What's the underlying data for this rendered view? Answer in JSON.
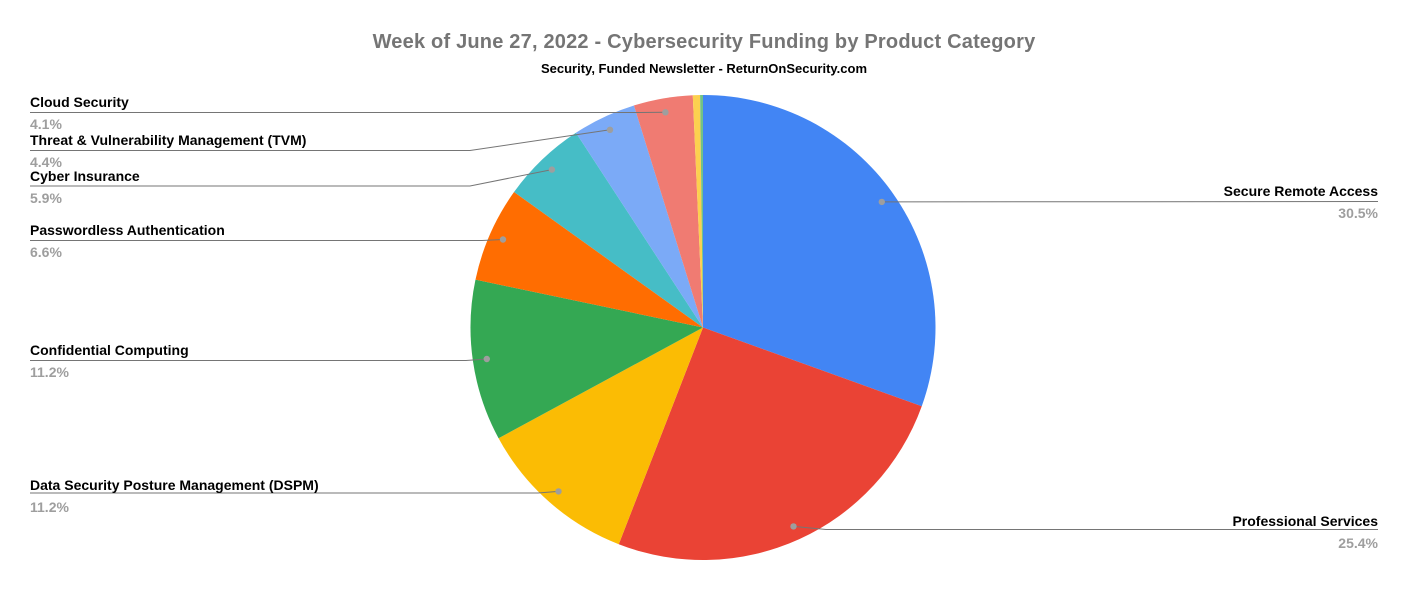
{
  "chart_data": {
    "type": "pie",
    "title": "Week of June 27, 2022 - Cybersecurity Funding by Product Category",
    "subtitle": "Security, Funded Newsletter - ReturnOnSecurity.com",
    "direction": "clockwise",
    "start_angle_deg": 0,
    "legend": "none",
    "slices": [
      {
        "label": "Secure Remote Access",
        "value_pct": 30.5,
        "pct_label": "30.5%",
        "color": "#4285F4",
        "label_side": "right"
      },
      {
        "label": "Professional Services",
        "value_pct": 25.4,
        "pct_label": "25.4%",
        "color": "#EA4335",
        "label_side": "right"
      },
      {
        "label": "Data Security Posture Management (DSPM)",
        "value_pct": 11.2,
        "pct_label": "11.2%",
        "color": "#FBBC04",
        "label_side": "left"
      },
      {
        "label": "Confidential Computing",
        "value_pct": 11.2,
        "pct_label": "11.2%",
        "color": "#34A853",
        "label_side": "left"
      },
      {
        "label": "Passwordless Authentication",
        "value_pct": 6.6,
        "pct_label": "6.6%",
        "color": "#FF6D01",
        "label_side": "left"
      },
      {
        "label": "Cyber Insurance",
        "value_pct": 5.9,
        "pct_label": "5.9%",
        "color": "#46BDC6",
        "label_side": "left"
      },
      {
        "label": "Threat & Vulnerability Management (TVM)",
        "value_pct": 4.4,
        "pct_label": "4.4%",
        "color": "#7BAAF7",
        "label_side": "left"
      },
      {
        "label": "Cloud Security",
        "value_pct": 4.1,
        "pct_label": "4.1%",
        "color": "#F07B72",
        "label_side": "left"
      },
      {
        "label": "",
        "value_pct": 0.5,
        "pct_label": "",
        "color": "#FCD04F",
        "label_side": "none"
      },
      {
        "label": "",
        "value_pct": 0.2,
        "pct_label": "",
        "color": "#71C287",
        "label_side": "none"
      }
    ],
    "colors": {
      "background": "#FFFFFF",
      "title_text": "#757575",
      "subtitle_text": "#000000",
      "slice_label_text": "#000000",
      "percent_text": "#9E9E9E",
      "leader_line": "#757575",
      "leader_dot": "#9E9E9E"
    }
  }
}
